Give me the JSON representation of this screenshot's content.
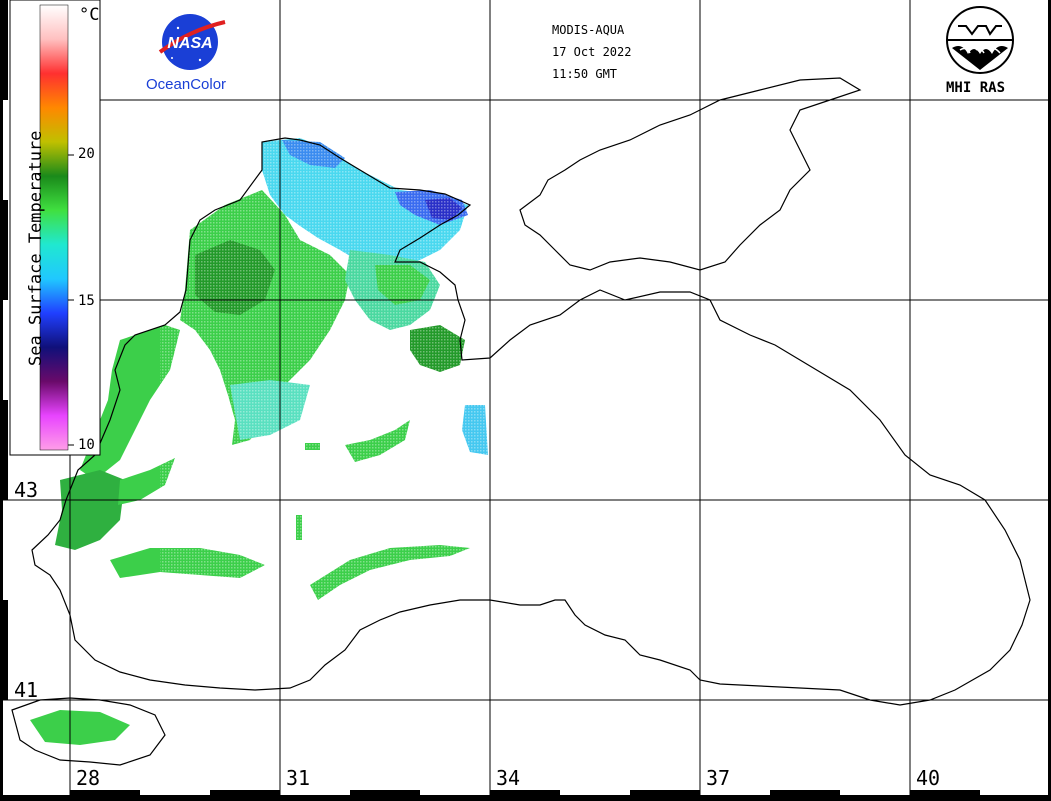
{
  "header": {
    "satellite": "MODIS-AQUA",
    "date": "17 Oct 2022",
    "time": "11:50 GMT"
  },
  "logos": {
    "nasa_text": "NASA",
    "oceancolor_text": "OceanColor",
    "mhi_text": "MHI RAS"
  },
  "colorbar": {
    "title": "Sea Surface Temperature",
    "unit": "°C",
    "ticks": [
      "20",
      "15",
      "10"
    ],
    "min": 10,
    "max": 25,
    "colors": [
      "#ff9ee8",
      "#e844ff",
      "#6a0a6a",
      "#10107a",
      "#2040ff",
      "#20c8ff",
      "#20e8d0",
      "#40e040",
      "#1a8a1a",
      "#c0c000",
      "#ff8800",
      "#ff3030",
      "#ffc0c0",
      "#ffffff"
    ]
  },
  "grid": {
    "longitude_labels": [
      "28",
      "31",
      "34",
      "37",
      "40"
    ],
    "latitude_labels": [
      "43",
      "41"
    ]
  },
  "icons": [
    "nasa-logo-icon",
    "mhi-ras-logo-icon"
  ]
}
